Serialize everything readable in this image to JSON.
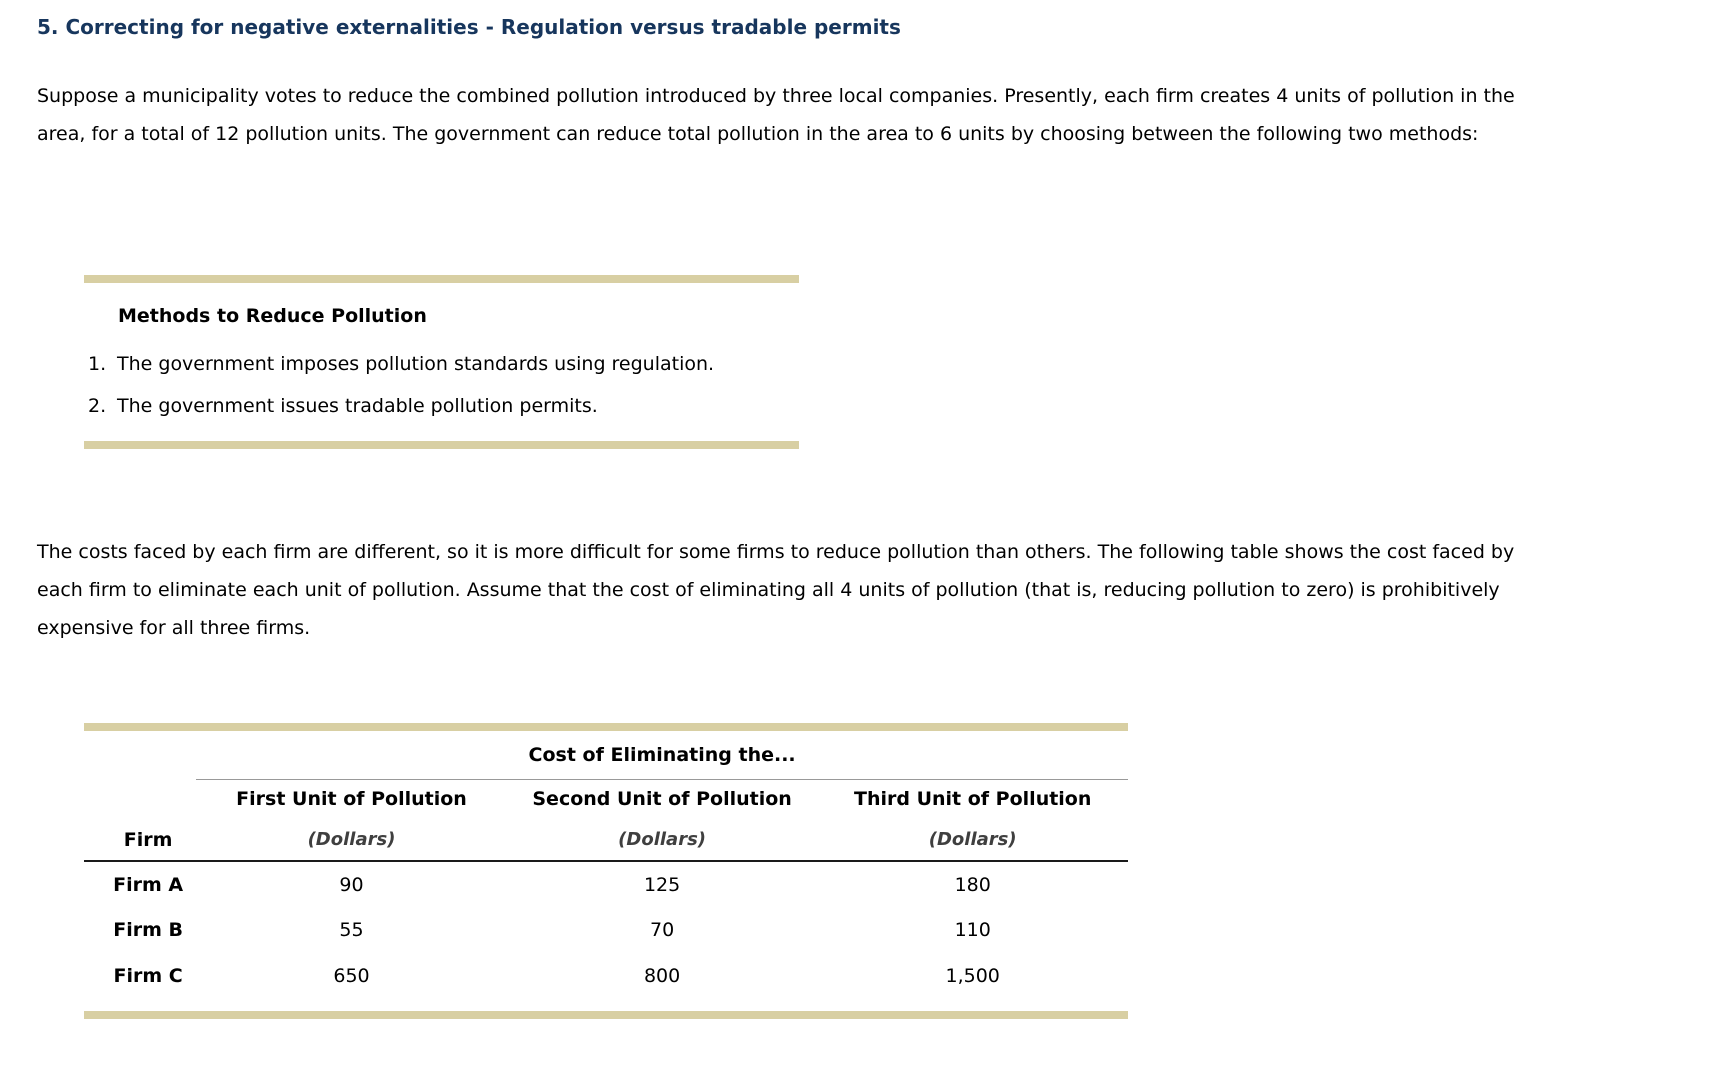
{
  "page": {
    "title": "5. Correcting for negative externalities - Regulation versus tradable permits",
    "intro_paragraph": "Suppose a municipality votes to reduce the combined pollution introduced by three local companies. Presently, each firm creates 4 units of pollution in the area, for a total of 12 pollution units. The government can reduce total pollution in the area to 6 units by choosing between the following two methods:",
    "methods_box": {
      "heading": "Methods to Reduce Pollution",
      "items": [
        {
          "number": "1.",
          "text": "The government imposes pollution standards using regulation."
        },
        {
          "number": "2.",
          "text": "The government issues tradable pollution permits."
        }
      ]
    },
    "costs_paragraph": "The costs faced by each firm are different, so it is more difficult for some firms to reduce pollution than others. The following table shows the cost faced by each firm to eliminate each unit of pollution. Assume that the cost of eliminating all 4 units of pollution (that is, reducing pollution to zero) is prohibitively expensive for all three firms.",
    "cost_table": {
      "spanning_header": "Cost of Eliminating the...",
      "firm_column_header": "Firm",
      "unit_columns": [
        "First Unit of Pollution",
        "Second Unit of Pollution",
        "Third Unit of Pollution"
      ],
      "unit_sublabel": "(Dollars)",
      "rows": [
        {
          "firm": "Firm A",
          "values": [
            "90",
            "125",
            "180"
          ]
        },
        {
          "firm": "Firm B",
          "values": [
            "55",
            "70",
            "110"
          ]
        },
        {
          "firm": "Firm C",
          "values": [
            "650",
            "800",
            "1,500"
          ]
        }
      ]
    },
    "colors": {
      "accent_bar": "#d8cfa3",
      "title_navy": "#17365d"
    }
  }
}
